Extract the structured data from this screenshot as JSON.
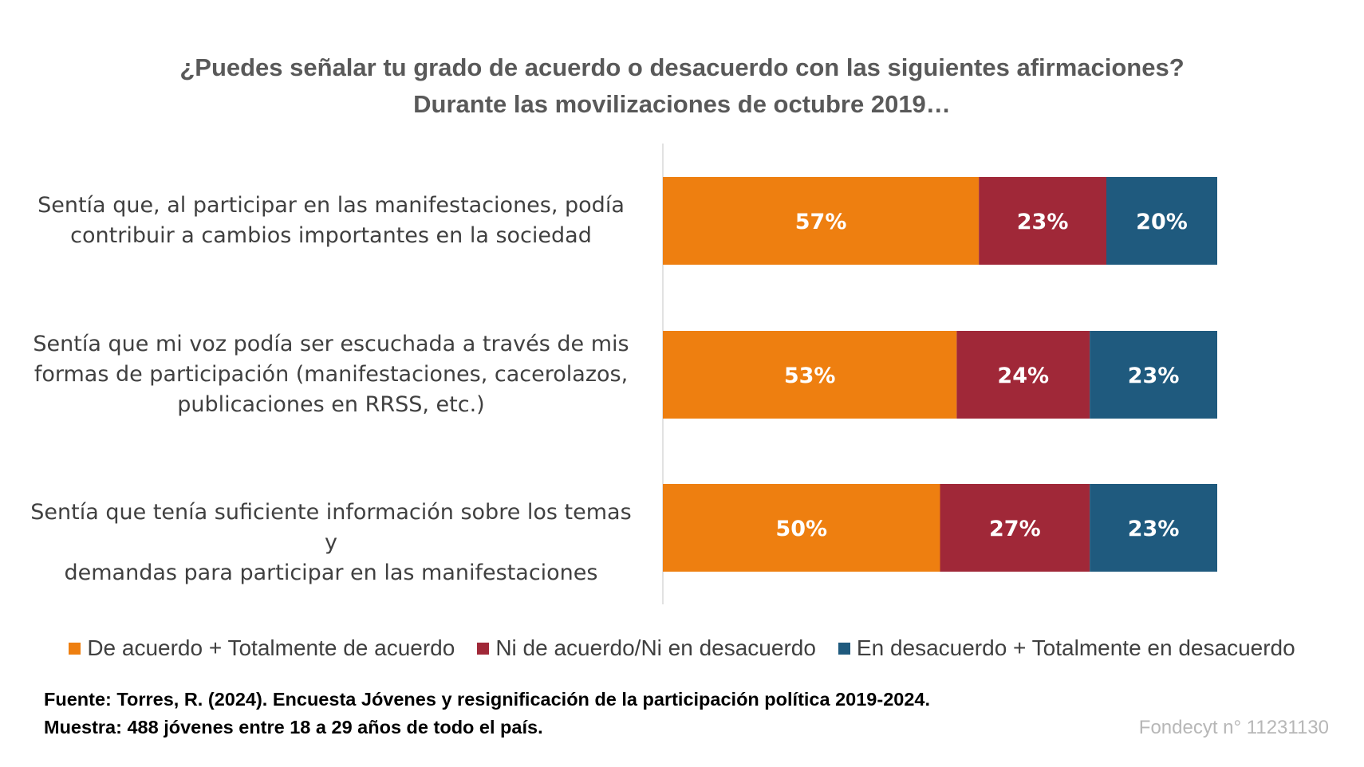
{
  "chart_data": {
    "type": "bar",
    "orientation": "horizontal",
    "stacked": true,
    "title": "¿Puedes señalar tu grado de acuerdo o desacuerdo con las siguientes afirmaciones?",
    "subtitle": "Durante las movilizaciones de octubre 2019…",
    "categories": [
      [
        "Sentía que, al participar en las manifestaciones, podía",
        "contribuir a cambios importantes en la sociedad"
      ],
      [
        "Sentía que mi voz podía ser escuchada a través de mis",
        "formas de participación (manifestaciones, cacerolazos,",
        "publicaciones en RRSS, etc.)"
      ],
      [
        "Sentía que tenía suficiente información sobre los temas y",
        "demandas para participar en las manifestaciones"
      ]
    ],
    "series": [
      {
        "name": "De acuerdo + Totalmente de acuerdo",
        "color": "#EE7F10",
        "values": [
          57,
          53,
          50
        ],
        "labels": [
          "57%",
          "53%",
          "50%"
        ]
      },
      {
        "name": "Ni de acuerdo/Ni en desacuerdo",
        "color": "#A02838",
        "values": [
          23,
          24,
          27
        ],
        "labels": [
          "23%",
          "24%",
          "27%"
        ]
      },
      {
        "name": "En desacuerdo + Totalmente en desacuerdo",
        "color": "#1F5A7E",
        "values": [
          20,
          23,
          23
        ],
        "labels": [
          "20%",
          "23%",
          "23%"
        ]
      }
    ],
    "xlim": [
      0,
      100
    ],
    "grid": false,
    "legend": "bottom"
  },
  "source": {
    "line1": "Fuente: Torres, R. (2024). Encuesta Jóvenes y resignificación de la participación política 2019-2024.",
    "line2": "Muestra: 488 jóvenes entre 18 a 29 años de todo el país."
  },
  "credit": "Fondecyt n° 11231130"
}
